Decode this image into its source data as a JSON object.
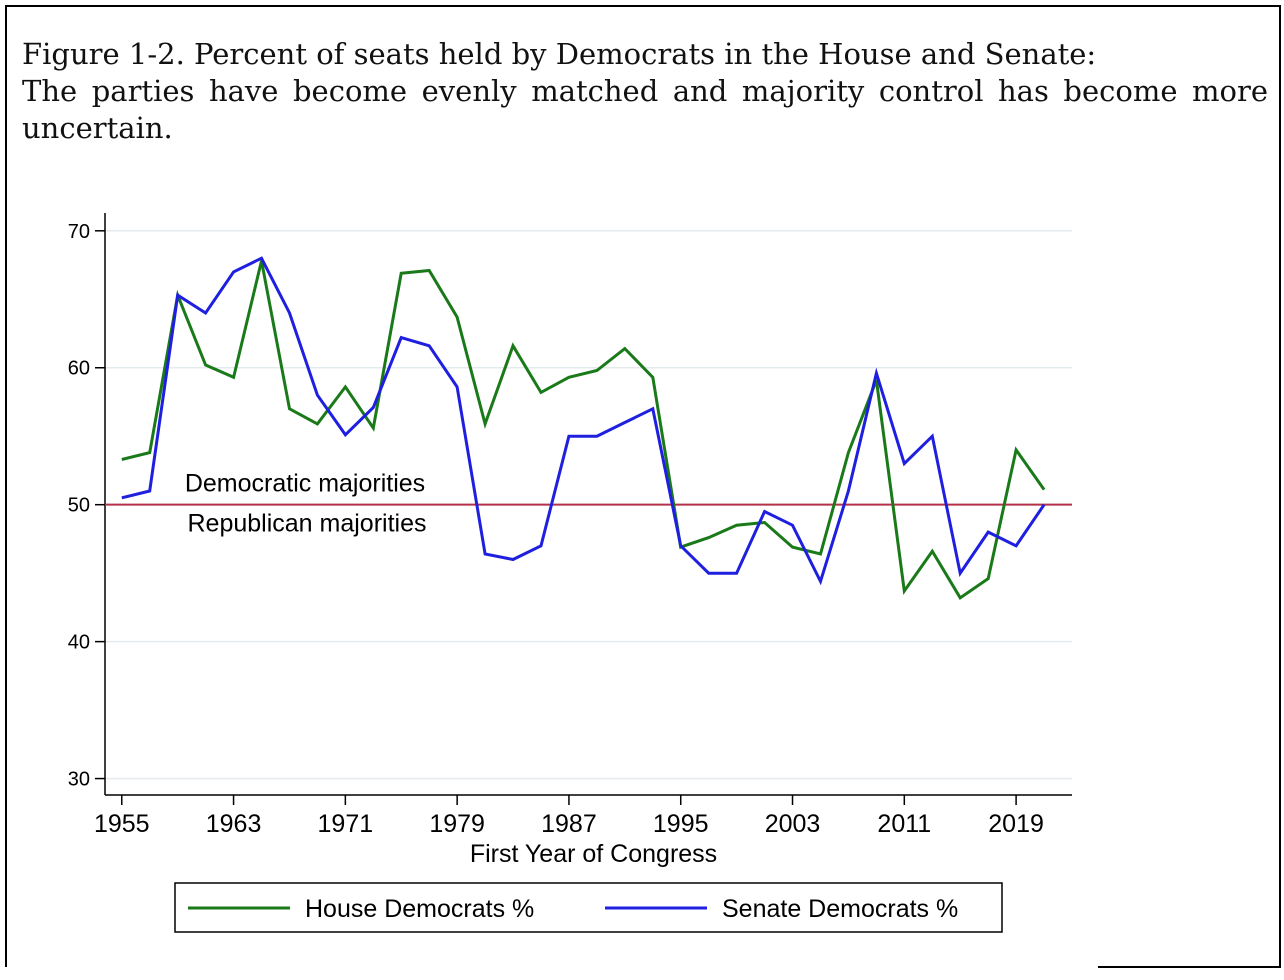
{
  "figure": {
    "caption_line1": "Figure 1-2. Percent of seats held by Democrats in the House and Senate:",
    "caption_line2": "The parties have become evenly matched and majority control has become more uncertain."
  },
  "chart_data": {
    "type": "line",
    "xlabel": "First Year of Congress",
    "ylabel": "",
    "xlim": [
      1953.8,
      2023
    ],
    "ylim": [
      28.8,
      71.3
    ],
    "x_ticks": [
      1955,
      1963,
      1971,
      1979,
      1987,
      1995,
      2003,
      2011,
      2019
    ],
    "y_ticks": [
      30,
      40,
      50,
      60,
      70
    ],
    "grid": true,
    "reference_line": {
      "y": 50,
      "color": "#b5304a"
    },
    "annotations": {
      "above": "Democratic majorities",
      "below": "Republican majorities"
    },
    "legend_position": "bottom",
    "x": [
      1955,
      1957,
      1959,
      1961,
      1963,
      1965,
      1967,
      1969,
      1971,
      1973,
      1975,
      1977,
      1979,
      1981,
      1983,
      1985,
      1987,
      1989,
      1991,
      1993,
      1995,
      1997,
      1999,
      2001,
      2003,
      2005,
      2007,
      2009,
      2011,
      2013,
      2015,
      2017,
      2019,
      2021
    ],
    "series": [
      {
        "name": "House Democrats %",
        "color": "#1a7a1a",
        "values": [
          53.3,
          53.8,
          65.3,
          60.2,
          59.3,
          67.8,
          57.0,
          55.9,
          58.6,
          55.6,
          66.9,
          67.1,
          63.7,
          55.9,
          61.6,
          58.2,
          59.3,
          59.8,
          61.4,
          59.3,
          46.9,
          47.6,
          48.5,
          48.7,
          46.9,
          46.4,
          53.8,
          59.1,
          43.7,
          46.6,
          43.2,
          44.6,
          54.0,
          51.1
        ]
      },
      {
        "name": "Senate Democrats %",
        "color": "#1f1fe0",
        "values": [
          50.5,
          51.0,
          65.3,
          64.0,
          67.0,
          68.0,
          64.0,
          58.0,
          55.1,
          57.1,
          62.2,
          61.6,
          58.6,
          46.4,
          46.0,
          47.0,
          55.0,
          55.0,
          56.0,
          57.0,
          47.0,
          45.0,
          45.0,
          49.5,
          48.5,
          44.4,
          51.0,
          59.6,
          53.0,
          55.0,
          45.0,
          48.0,
          47.0,
          50.0
        ]
      }
    ]
  }
}
